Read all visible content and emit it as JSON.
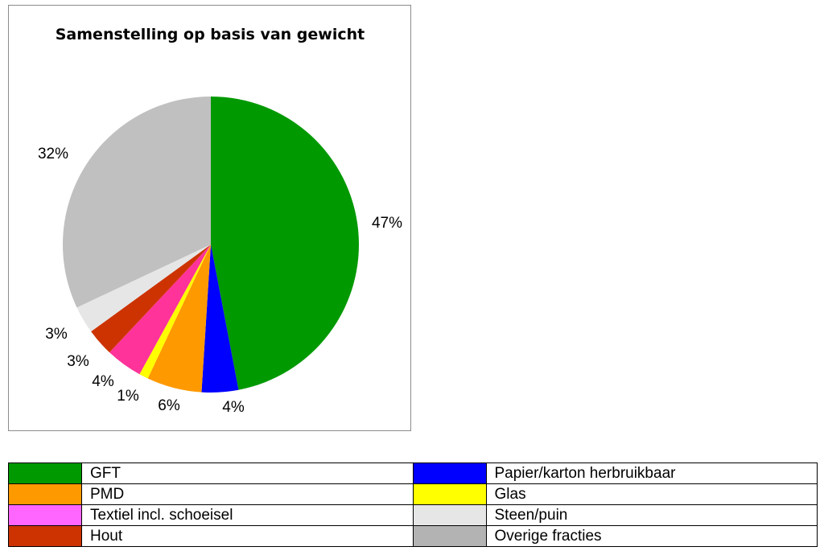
{
  "chart_data": {
    "type": "pie",
    "title": "Samenstelling op basis van gewicht",
    "unit": "%",
    "slices": [
      {
        "name": "GFT",
        "value": 47,
        "label": "47%",
        "color": "#009900"
      },
      {
        "name": "Papier/karton herbruikbaar",
        "value": 4,
        "label": "4%",
        "color": "#0000FF"
      },
      {
        "name": "PMD",
        "value": 6,
        "label": "6%",
        "color": "#FF9900"
      },
      {
        "name": "Glas",
        "value": 1,
        "label": "1%",
        "color": "#FFFF00"
      },
      {
        "name": "Textiel incl. schoeisel",
        "value": 4,
        "label": "4%",
        "color": "#FF3399"
      },
      {
        "name": "Hout",
        "value": 3,
        "label": "3%",
        "color": "#CC3300"
      },
      {
        "name": "Steen/puin",
        "value": 3,
        "label": "3%",
        "color": "#E6E6E6"
      },
      {
        "name": "Overige fracties",
        "value": 32,
        "label": "32%",
        "color": "#C0C0C0"
      }
    ],
    "legend_position": "bottom"
  },
  "legend": {
    "rows": [
      [
        {
          "name": "GFT",
          "color": "#009900"
        },
        {
          "name": "Papier/karton herbruikbaar",
          "color": "#0000FF"
        }
      ],
      [
        {
          "name": "PMD",
          "color": "#FF9900"
        },
        {
          "name": "Glas",
          "color": "#FFFF00"
        }
      ],
      [
        {
          "name": "Textiel incl. schoeisel",
          "color": "#FF66FF"
        },
        {
          "name": "Steen/puin",
          "color": "#E6E6E6"
        }
      ],
      [
        {
          "name": "Hout",
          "color": "#CC3300"
        },
        {
          "name": "Overige fracties",
          "color": "#B3B3B3"
        }
      ]
    ]
  }
}
